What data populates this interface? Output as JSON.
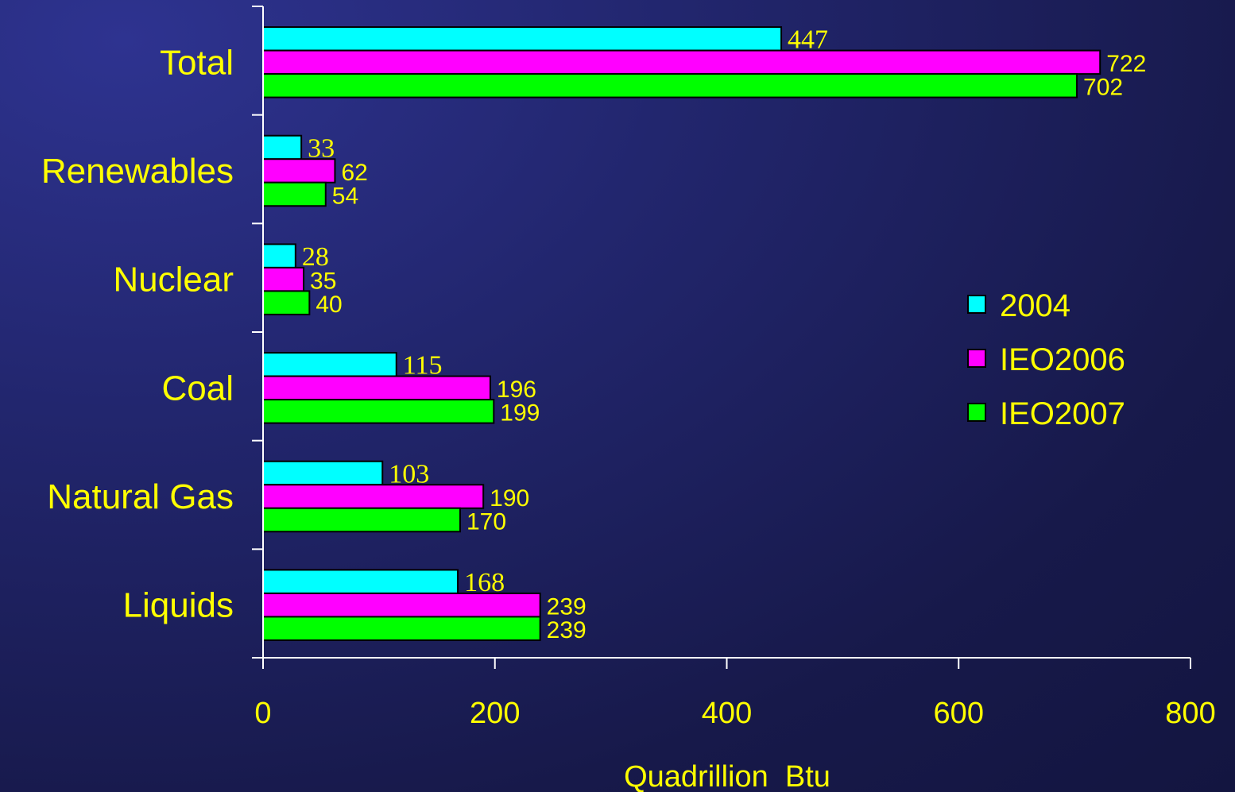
{
  "chart_data": {
    "type": "bar",
    "orientation": "horizontal",
    "categories": [
      "Liquids",
      "Natural Gas",
      "Coal",
      "Nuclear",
      "Renewables",
      "Total"
    ],
    "series": [
      {
        "name": "2004",
        "color": "#00ffff",
        "values": [
          168,
          103,
          115,
          28,
          33,
          447
        ]
      },
      {
        "name": "IEO2006",
        "color": "#ff00ff",
        "values": [
          239,
          190,
          196,
          35,
          62,
          722
        ]
      },
      {
        "name": "IEO2007",
        "color": "#00ff00",
        "values": [
          239,
          170,
          199,
          40,
          54,
          702
        ]
      }
    ],
    "xlabel": "Quadrillion  Btu",
    "xlim": [
      0,
      800
    ],
    "xticks": [
      0,
      200,
      400,
      600,
      800
    ],
    "grid": false,
    "legend_position": "right"
  }
}
